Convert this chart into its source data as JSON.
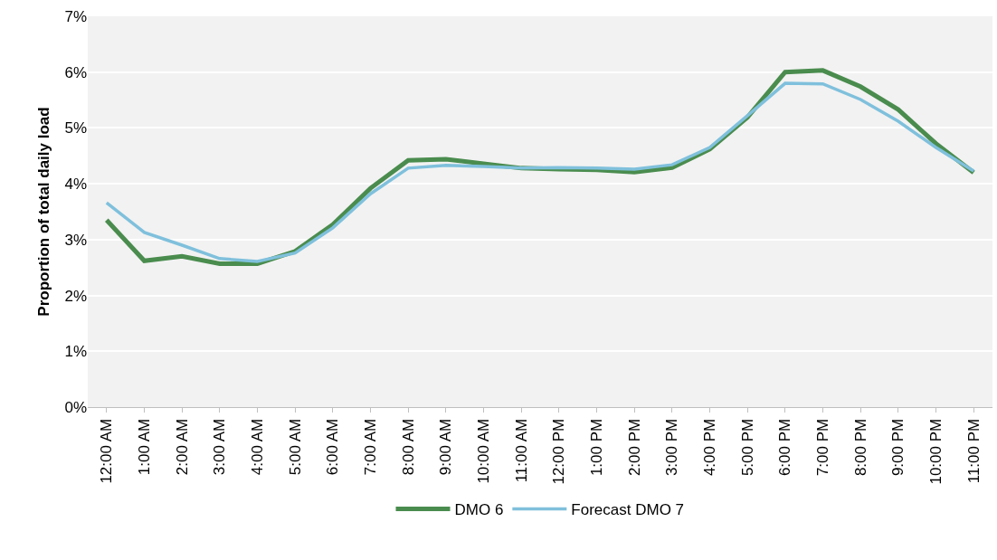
{
  "chart_data": {
    "type": "line",
    "ylabel": "Proportion of total daily load",
    "categories": [
      "12:00 AM",
      "1:00 AM",
      "2:00 AM",
      "3:00 AM",
      "4:00 AM",
      "5:00 AM",
      "6:00 AM",
      "7:00 AM",
      "8:00 AM",
      "9:00 AM",
      "10:00 AM",
      "11:00 AM",
      "12:00 PM",
      "1:00 PM",
      "2:00 PM",
      "3:00 PM",
      "4:00 PM",
      "5:00 PM",
      "6:00 PM",
      "7:00 PM",
      "8:00 PM",
      "9:00 PM",
      "10:00 PM",
      "11:00 PM"
    ],
    "series": [
      {
        "name": "DMO 6",
        "color": "#4a8c4e",
        "values": [
          3.35,
          2.62,
          2.7,
          2.57,
          2.57,
          2.79,
          3.27,
          3.92,
          4.42,
          4.44,
          4.36,
          4.28,
          4.26,
          4.25,
          4.21,
          4.29,
          4.62,
          5.19,
          6.0,
          6.03,
          5.74,
          5.33,
          4.72,
          4.2
        ]
      },
      {
        "name": "Forecast DMO 7",
        "color": "#7fc0dc",
        "values": [
          3.66,
          3.13,
          2.9,
          2.66,
          2.61,
          2.76,
          3.21,
          3.82,
          4.28,
          4.33,
          4.31,
          4.28,
          4.29,
          4.28,
          4.26,
          4.34,
          4.65,
          5.22,
          5.8,
          5.79,
          5.51,
          5.12,
          4.65,
          4.23
        ]
      }
    ],
    "ylim": [
      0,
      7
    ],
    "yticks": [
      {
        "value": 0,
        "label": "0%"
      },
      {
        "value": 1,
        "label": "1%"
      },
      {
        "value": 2,
        "label": "2%"
      },
      {
        "value": 3,
        "label": "3%"
      },
      {
        "value": 4,
        "label": "4%"
      },
      {
        "value": 5,
        "label": "5%"
      },
      {
        "value": 6,
        "label": "6%"
      },
      {
        "value": 7,
        "label": "7%"
      }
    ],
    "grid": "y",
    "legend": "bottom",
    "marker": "none",
    "line_style": "solid"
  }
}
